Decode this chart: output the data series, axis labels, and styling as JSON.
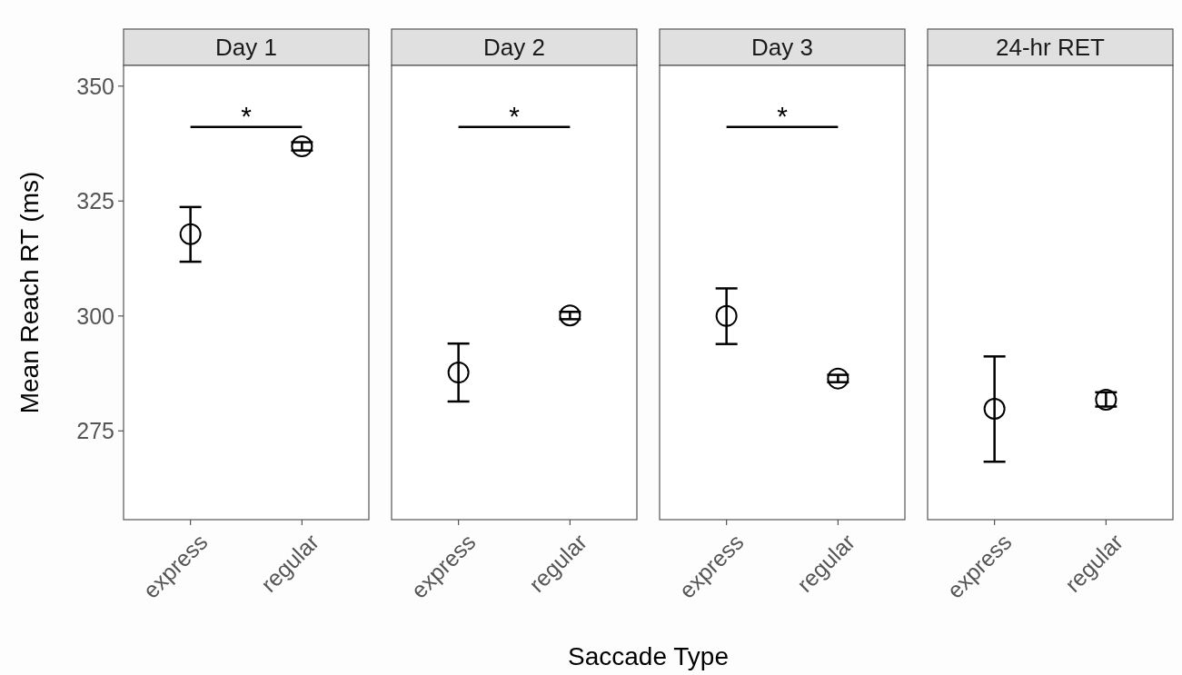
{
  "chart_data": [
    {
      "type": "scatter",
      "title": "Day 1",
      "ylabel": "Mean Reach RT (ms)",
      "categories": [
        "express",
        "regular"
      ],
      "values": [
        317.8,
        336.9
      ],
      "errors": [
        [
          311.8,
          323.7
        ],
        [
          336.0,
          337.8
        ]
      ],
      "color": "#000000",
      "marker": "circle",
      "ylim": [
        255.7,
        354.5
      ],
      "yticks": [
        275,
        300,
        325,
        350
      ],
      "annotations": [
        "*"
      ]
    },
    {
      "type": "scatter",
      "title": "Day 2",
      "categories": [
        "express",
        "regular"
      ],
      "values": [
        287.7,
        300.1
      ],
      "errors": [
        [
          281.4,
          294.0
        ],
        [
          299.3,
          300.9
        ]
      ],
      "color": "#000000",
      "marker": "circle",
      "ylim": [
        255.7,
        354.5
      ],
      "yticks": [
        275,
        300,
        325,
        350
      ],
      "tick_labels": "x",
      "annotations": [
        "*"
      ]
    },
    {
      "type": "scatter",
      "title": "Day 3",
      "xlabel": "Saccade Type",
      "categories": [
        "express",
        "regular"
      ],
      "values": [
        300.0,
        286.4
      ],
      "errors": [
        [
          293.9,
          306.0
        ],
        [
          285.6,
          287.2
        ]
      ],
      "color": "#000000",
      "marker": "circle",
      "ylim": [
        255.7,
        354.5
      ],
      "yticks": [
        275,
        300,
        325,
        350
      ],
      "tick_labels": "x",
      "annotations": [
        "*"
      ]
    },
    {
      "type": "scatter",
      "title": "24-hr RET",
      "categories": [
        "express",
        "regular"
      ],
      "values": [
        279.8,
        281.8
      ],
      "errors": [
        [
          268.3,
          291.2
        ],
        [
          280.3,
          283.4
        ]
      ],
      "color": "#000000",
      "marker": "circle",
      "ylim": [
        255.7,
        354.5
      ],
      "yticks": [
        275,
        300,
        325,
        350
      ],
      "tick_labels": "x"
    }
  ]
}
